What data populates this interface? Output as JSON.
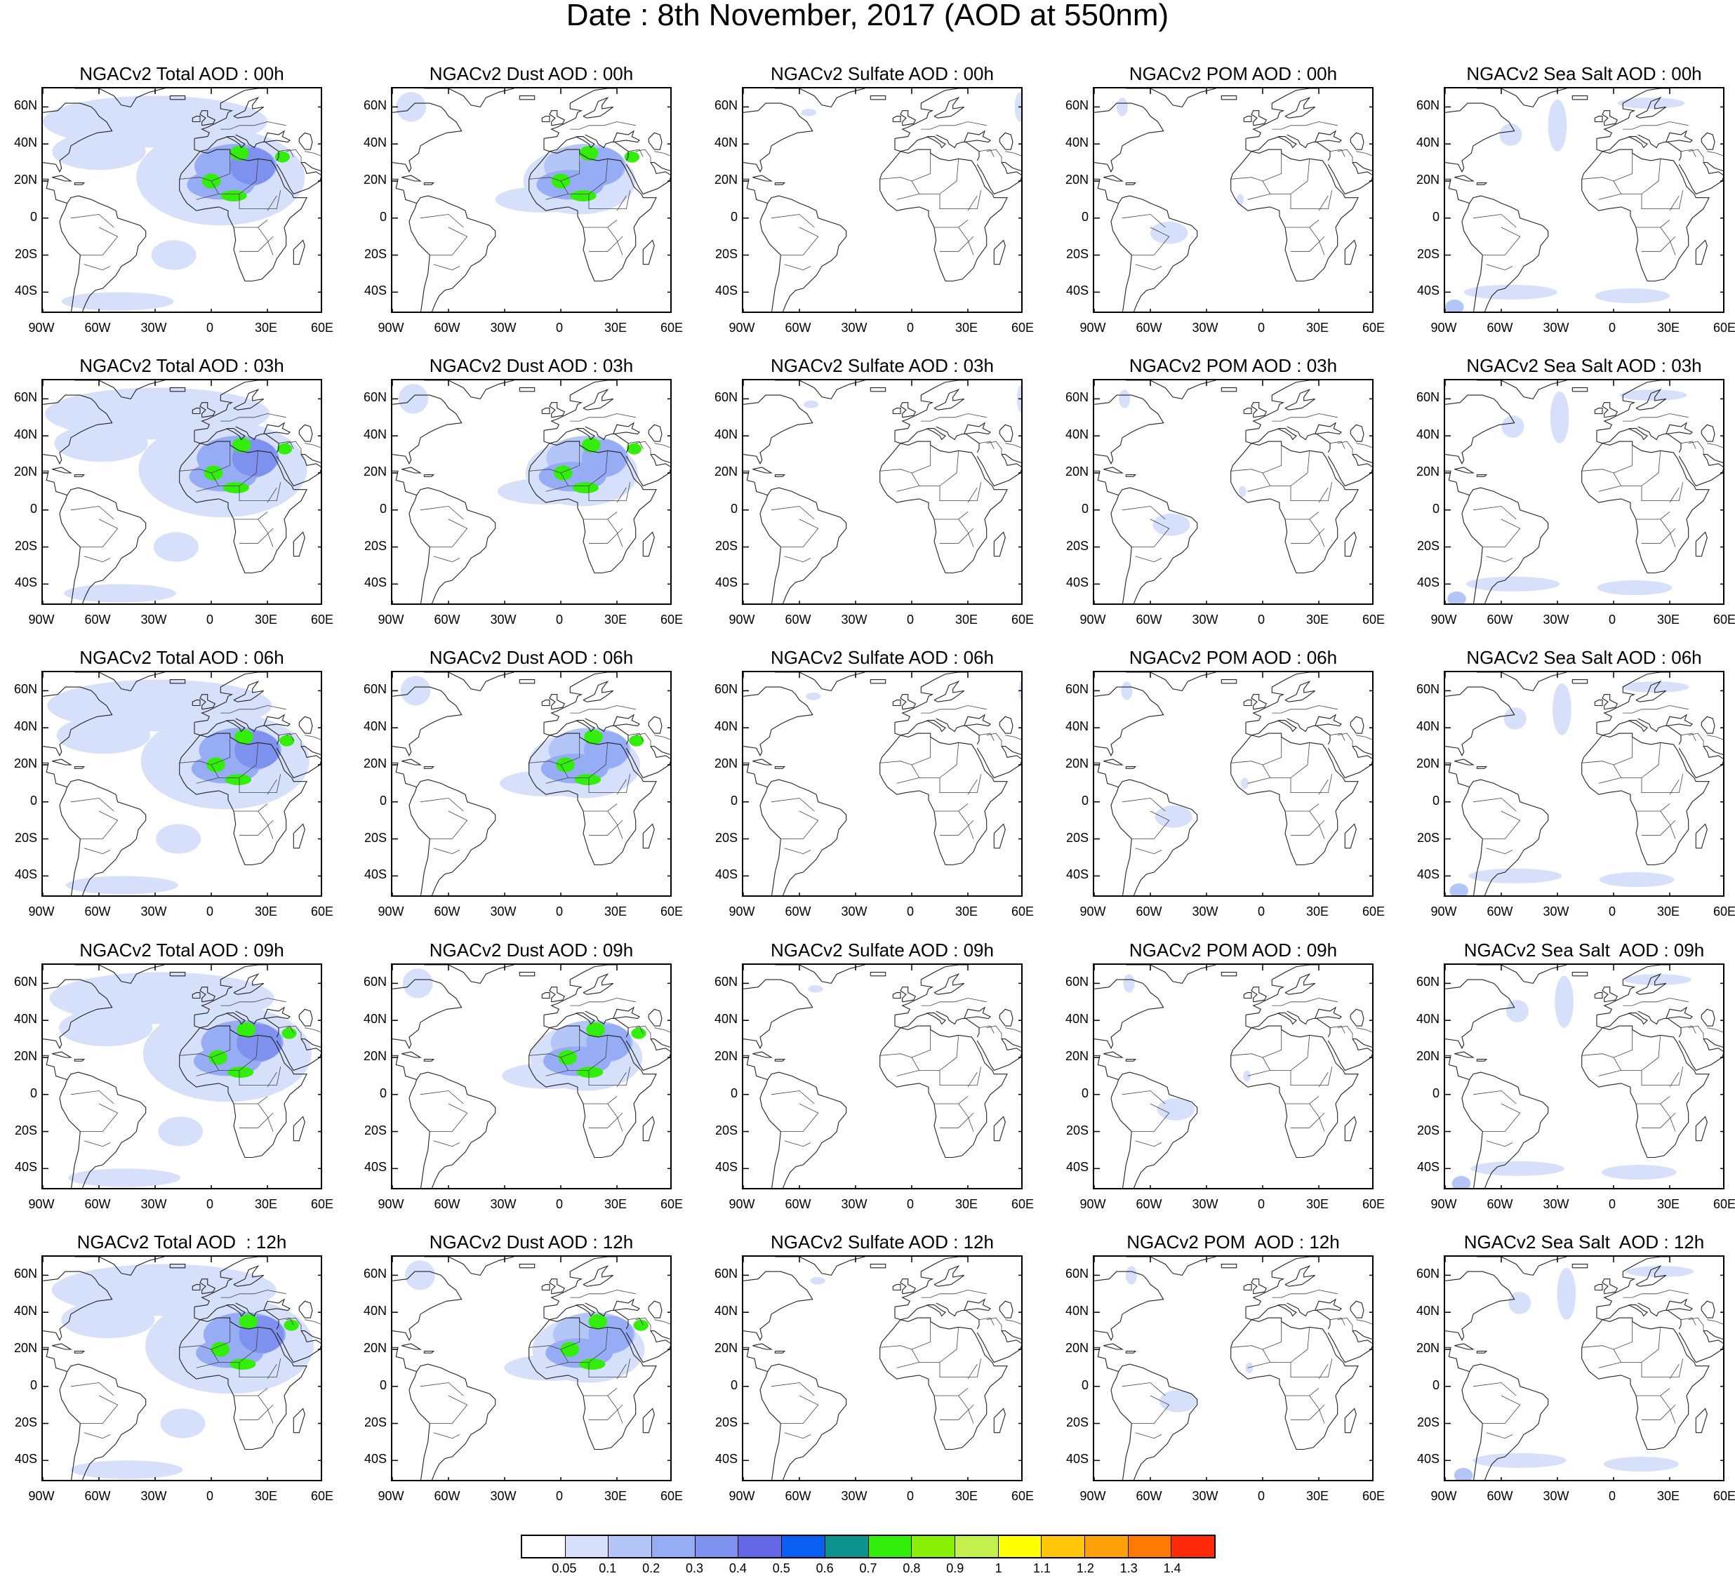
{
  "title": "Date : 8th November, 2017 (AOD at 550nm)",
  "axes": {
    "lat_labels": [
      "60N",
      "40N",
      "20N",
      "0",
      "20S",
      "40S"
    ],
    "lat_values": [
      60,
      40,
      20,
      0,
      -20,
      -40
    ],
    "lon_labels": [
      "90W",
      "60W",
      "30W",
      "0",
      "30E",
      "60E"
    ],
    "lon_values": [
      -90,
      -60,
      -30,
      0,
      30,
      60
    ],
    "lat_range": [
      -52,
      70
    ],
    "lon_range": [
      -90,
      60
    ]
  },
  "species": [
    "total",
    "dust",
    "sulfate",
    "pom",
    "seasalt"
  ],
  "panels": [
    [
      "NGACv2 Total AOD : 00h",
      "NGACv2 Dust AOD : 00h",
      "NGACv2 Sulfate AOD : 00h",
      "NGACv2 POM AOD : 00h",
      "NGACv2 Sea Salt AOD : 00h"
    ],
    [
      "NGACv2 Total AOD : 03h",
      "NGACv2 Dust AOD : 03h",
      "NGACv2 Sulfate AOD : 03h",
      "NGACv2 POM AOD : 03h",
      "NGACv2 Sea Salt AOD : 03h"
    ],
    [
      "NGACv2 Total AOD : 06h",
      "NGACv2 Dust AOD : 06h",
      "NGACv2 Sulfate AOD : 06h",
      "NGACv2 POM AOD : 06h",
      "NGACv2 Sea Salt AOD : 06h"
    ],
    [
      "NGACv2 Total AOD : 09h",
      "NGACv2 Dust AOD : 09h",
      "NGACv2 Sulfate AOD : 09h",
      "NGACv2 POM AOD : 09h",
      "NGACv2 Sea Salt  AOD : 09h"
    ],
    [
      "NGACv2 Total AOD  : 12h",
      "NGACv2 Dust AOD : 12h",
      "NGACv2 Sulfate AOD : 12h",
      "NGACv2 POM  AOD : 12h",
      "NGACv2 Sea Salt  AOD : 12h"
    ]
  ],
  "colorbar": {
    "labels": [
      "0.05",
      "0.1",
      "0.2",
      "0.3",
      "0.4",
      "0.5",
      "0.6",
      "0.7",
      "0.8",
      "0.9",
      "1",
      "1.1",
      "1.2",
      "1.3",
      "1.4"
    ],
    "colors": [
      "#ffffff",
      "#d6e0fa",
      "#b4c6f7",
      "#96acf5",
      "#7f91ee",
      "#6466e3",
      "#0a5ef0",
      "#0c938d",
      "#33ee0a",
      "#8af005",
      "#c3f04d",
      "#ffff00",
      "#ffc60a",
      "#ffa10a",
      "#ff7a05",
      "#ff2a0a"
    ]
  }
}
